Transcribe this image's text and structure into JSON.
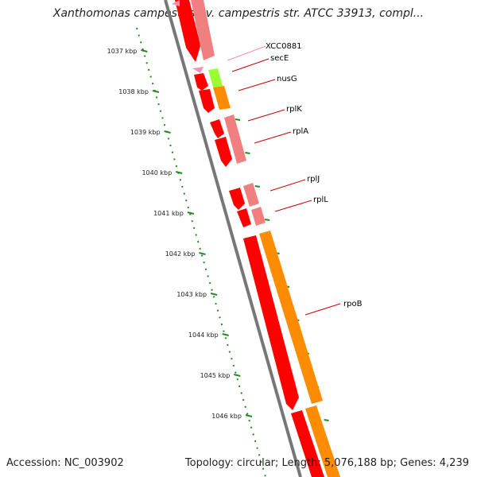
{
  "title": "Xanthomonas campestris pv. campestris str. ATCC 33913, compl...",
  "footer": {
    "accession": "Accession: NC_003902",
    "summary": "Topology: circular; Length: 5,076,188 bp; Genes: 4,239"
  },
  "ticks": [
    {
      "label": "1037 kbp"
    },
    {
      "label": "1038 kbp"
    },
    {
      "label": "1039 kbp"
    },
    {
      "label": "1040 kbp"
    },
    {
      "label": "1041 kbp"
    },
    {
      "label": "1042 kbp"
    },
    {
      "label": "1043 kbp"
    },
    {
      "label": "1044 kbp"
    },
    {
      "label": "1045 kbp"
    },
    {
      "label": "1046 kbp"
    }
  ],
  "genes": [
    {
      "name": "XCC0881",
      "color": "#f48fb8"
    },
    {
      "name": "secE",
      "color": "#cc0000"
    },
    {
      "name": "nusG",
      "color": "#cc0000"
    },
    {
      "name": "rplK",
      "color": "#cc0000"
    },
    {
      "name": "rplA",
      "color": "#cc0000"
    },
    {
      "name": "rplJ",
      "color": "#cc0000"
    },
    {
      "name": "rplL",
      "color": "#cc0000"
    },
    {
      "name": "rpoB",
      "color": "#cc0000"
    }
  ],
  "colors": {
    "cds": "#ff0000",
    "cds_light": "#f08080",
    "nusG_band": "#ff8c00",
    "secE_band": "#99ff33",
    "rpoB_band": "#ff8c00",
    "backbone": "#808080",
    "ticks": "#228b22"
  }
}
